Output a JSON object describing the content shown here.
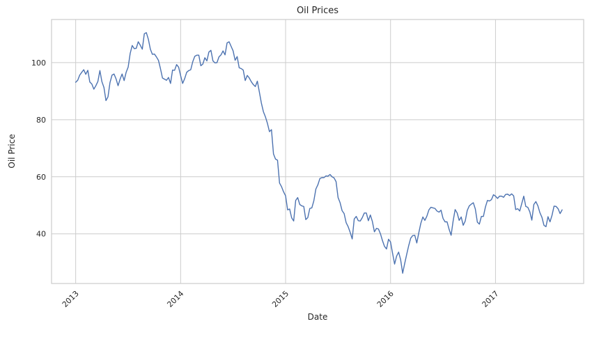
{
  "chart_data": {
    "type": "line",
    "title": "Oil Prices",
    "xlabel": "Date",
    "ylabel": "Oil Price",
    "x_ticks": [
      2013,
      2014,
      2015,
      2016,
      2017
    ],
    "y_ticks": [
      40,
      60,
      80,
      100
    ],
    "xlim": [
      2012.77,
      2017.84
    ],
    "ylim": [
      22.6,
      115.1
    ],
    "grid": true,
    "legend": false,
    "style": "whitegrid",
    "colors": {
      "line": "#4C72B0",
      "grid": "#cccccc",
      "spine": "#cccccc",
      "text": "#262626",
      "background": "#ffffff"
    },
    "series": [
      {
        "name": "Oil Price",
        "x_start": 2013.0,
        "x_step_years": 0.0192308,
        "values": [
          93.1,
          93.8,
          95.6,
          96.6,
          97.5,
          95.9,
          97.3,
          93.2,
          92.5,
          90.7,
          91.9,
          93.4,
          97.2,
          93.3,
          91.3,
          86.7,
          88.0,
          93.0,
          95.6,
          96.0,
          94.3,
          91.9,
          94.2,
          96.0,
          93.7,
          96.6,
          98.4,
          103.2,
          106.0,
          104.9,
          105.0,
          107.3,
          106.1,
          104.7,
          110.1,
          110.5,
          108.2,
          104.7,
          102.9,
          103.0,
          102.0,
          100.8,
          97.9,
          94.6,
          94.2,
          93.8,
          94.8,
          92.7,
          97.4,
          97.3,
          99.3,
          98.4,
          95.4,
          92.7,
          94.4,
          96.6,
          97.2,
          97.5,
          100.3,
          102.2,
          102.6,
          102.6,
          98.9,
          99.5,
          101.7,
          100.6,
          103.7,
          104.3,
          100.6,
          99.9,
          100.0,
          102.0,
          102.7,
          104.1,
          102.7,
          106.9,
          107.3,
          105.7,
          104.1,
          100.8,
          102.1,
          98.2,
          97.9,
          97.4,
          93.7,
          95.5,
          94.6,
          93.3,
          92.3,
          91.6,
          93.5,
          89.7,
          85.8,
          82.8,
          81.0,
          78.7,
          75.8,
          76.5,
          68.0,
          66.2,
          65.8,
          57.8,
          56.5,
          54.7,
          53.3,
          48.4,
          48.7,
          45.6,
          44.5,
          51.7,
          52.7,
          50.3,
          49.8,
          49.6,
          45.0,
          45.7,
          48.9,
          49.1,
          51.6,
          55.7,
          57.2,
          59.4,
          59.7,
          59.7,
          60.3,
          60.2,
          60.8,
          60.0,
          59.6,
          58.3,
          52.7,
          50.9,
          48.1,
          47.1,
          43.9,
          42.5,
          40.5,
          38.2,
          45.2,
          46.1,
          44.6,
          44.5,
          45.7,
          47.3,
          47.3,
          44.6,
          46.6,
          44.3,
          40.7,
          41.9,
          41.7,
          40.0,
          37.6,
          35.6,
          34.7,
          38.1,
          37.1,
          33.2,
          29.4,
          32.2,
          33.6,
          30.9,
          26.2,
          29.6,
          32.8,
          35.9,
          38.5,
          39.4,
          39.5,
          36.8,
          40.4,
          43.7,
          45.9,
          44.7,
          46.2,
          48.4,
          49.3,
          49.1,
          48.9,
          48.0,
          47.6,
          48.3,
          45.4,
          44.2,
          44.2,
          41.6,
          39.5,
          44.5,
          48.5,
          47.3,
          44.7,
          45.9,
          43.0,
          44.5,
          48.2,
          49.8,
          50.4,
          50.9,
          48.7,
          44.1,
          43.4,
          46.1,
          46.1,
          49.4,
          51.7,
          51.5,
          52.0,
          53.7,
          53.2,
          52.4,
          53.2,
          53.2,
          52.8,
          53.8,
          53.9,
          53.4,
          54.0,
          53.3,
          48.5,
          48.8,
          48.0,
          50.6,
          53.2,
          49.6,
          49.3,
          47.7,
          44.8,
          50.3,
          51.3,
          49.8,
          47.4,
          45.8,
          43.0,
          42.5,
          46.0,
          44.2,
          46.5,
          49.7,
          49.6,
          48.8,
          47.1,
          48.4
        ]
      }
    ]
  }
}
